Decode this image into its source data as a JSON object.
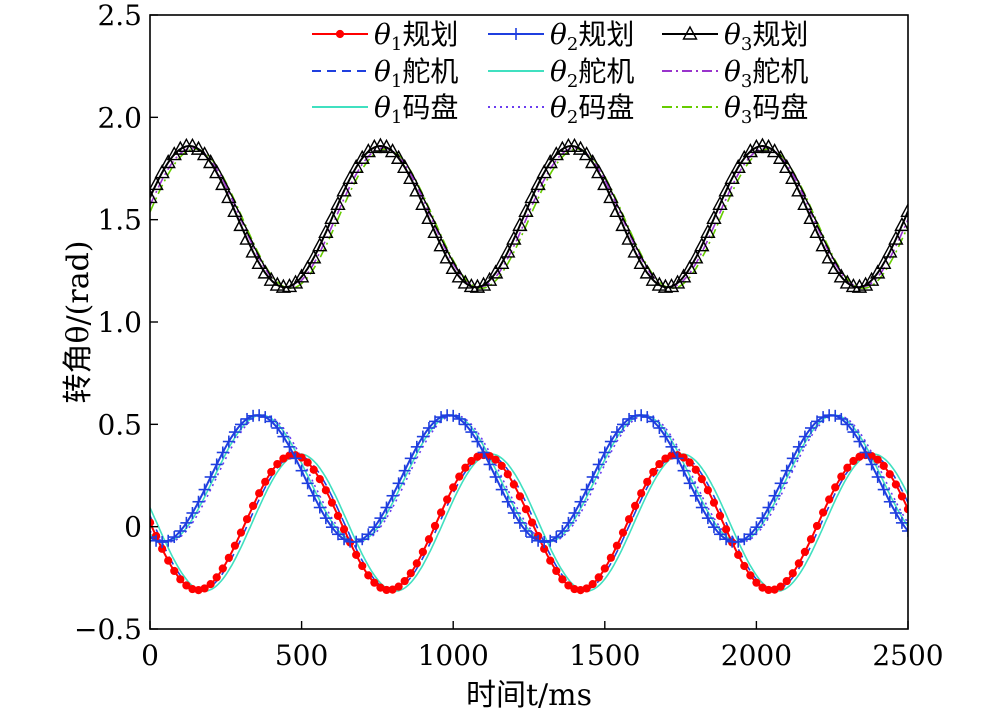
{
  "chart_data": {
    "type": "line",
    "xlabel": "时间t/ms",
    "ylabel": "转角θ/(rad)",
    "xlim": [
      0,
      2500
    ],
    "ylim": [
      -0.5,
      2.5
    ],
    "xticks": [
      0,
      500,
      1000,
      1500,
      2000,
      2500
    ],
    "xtick_labels": [
      "0",
      "500",
      "1000",
      "1500",
      "2000",
      "2500"
    ],
    "yticks": [
      -0.5,
      0,
      0.5,
      1.0,
      1.5,
      2.0,
      2.5
    ],
    "ytick_labels": [
      "−0.5",
      "0",
      "0.5",
      "1.0",
      "1.5",
      "2.0",
      "2.5"
    ],
    "grid": false,
    "legend_position": "top-right",
    "series_params_note": "sinusoids sampled from 0 to 2500 ms",
    "series": [
      {
        "name": "θ1规划",
        "legend_sym": "θ",
        "legend_sub": "1",
        "legend_rest": "规划",
        "color": "#ff0000",
        "style": "solid",
        "marker": "dot",
        "x_start": 0,
        "x_end": 2500,
        "x_step": 20,
        "mean": 0.02,
        "amp": 0.33,
        "period": 630,
        "phase_ms": 0,
        "shape": "neg-sin"
      },
      {
        "name": "θ2规划",
        "legend_sym": "θ",
        "legend_sub": "2",
        "legend_rest": "规划",
        "color": "#1f3fdf",
        "style": "solid",
        "marker": "plus",
        "x_start": 0,
        "x_end": 2500,
        "x_step": 20,
        "mean": 0.235,
        "amp": 0.31,
        "period": 630,
        "phase_ms": 40,
        "shape": "cos-lag"
      },
      {
        "name": "θ3规划",
        "legend_sym": "θ",
        "legend_sub": "3",
        "legend_rest": "规划",
        "color": "#000000",
        "style": "solid",
        "marker": "triangle",
        "x_start": 0,
        "x_end": 2500,
        "x_step": 20,
        "mean": 1.515,
        "amp": 0.345,
        "period": 630,
        "phase_ms": 130,
        "shape": "cos-peak"
      },
      {
        "name": "θ1舵机",
        "legend_sym": "θ",
        "legend_sub": "1",
        "legend_rest": "舵机",
        "color": "#1f3fdf",
        "style": "dashed",
        "marker": "none",
        "x_start": 0,
        "x_end": 2500,
        "x_step": 10,
        "mean": 0.02,
        "amp": 0.33,
        "period": 630,
        "phase_ms": 10,
        "shape": "neg-sin"
      },
      {
        "name": "θ2舵机",
        "legend_sym": "θ",
        "legend_sub": "2",
        "legend_rest": "舵机",
        "color": "#40e0c0",
        "style": "solid",
        "marker": "none",
        "x_start": 0,
        "x_end": 2500,
        "x_step": 10,
        "mean": 0.235,
        "amp": 0.31,
        "period": 630,
        "phase_ms": 52,
        "shape": "cos-lag"
      },
      {
        "name": "θ3舵机",
        "legend_sym": "θ",
        "legend_sub": "3",
        "legend_rest": "舵机",
        "color": "#9933cc",
        "style": "dashdot",
        "marker": "none",
        "x_start": 0,
        "x_end": 2500,
        "x_step": 10,
        "mean": 1.51,
        "amp": 0.34,
        "period": 630,
        "phase_ms": 140,
        "shape": "cos-peak"
      },
      {
        "name": "θ1码盘",
        "legend_sym": "θ",
        "legend_sub": "1",
        "legend_rest": "码盘",
        "color": "#40e0c0",
        "style": "solid",
        "marker": "none",
        "x_start": 0,
        "x_end": 2500,
        "x_step": 10,
        "mean": 0.02,
        "amp": 0.335,
        "period": 630,
        "phase_ms": 22,
        "shape": "neg-sin"
      },
      {
        "name": "θ2码盘",
        "legend_sym": "θ",
        "legend_sub": "2",
        "legend_rest": "码盘",
        "color": "#6a3df0",
        "style": "dotted",
        "marker": "none",
        "x_start": 0,
        "x_end": 2500,
        "x_step": 10,
        "mean": 0.235,
        "amp": 0.31,
        "period": 630,
        "phase_ms": 60,
        "shape": "cos-lag"
      },
      {
        "name": "θ3码盘",
        "legend_sym": "θ",
        "legend_sub": "3",
        "legend_rest": "码盘",
        "color": "#66cc00",
        "style": "dashdot",
        "marker": "none",
        "x_start": 0,
        "x_end": 2500,
        "x_step": 10,
        "mean": 1.505,
        "amp": 0.34,
        "period": 630,
        "phase_ms": 148,
        "shape": "cos-peak"
      }
    ]
  }
}
